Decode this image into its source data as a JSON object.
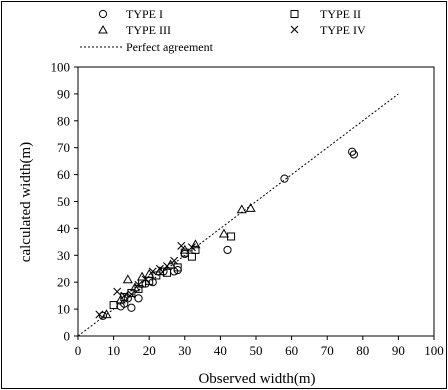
{
  "chart_data": {
    "type": "scatter",
    "title": "",
    "xlabel": "Observed width(m)",
    "ylabel": "calculated width(m)",
    "xlim": [
      0,
      100
    ],
    "ylim": [
      0,
      100
    ],
    "xticks": [
      0,
      10,
      20,
      30,
      40,
      50,
      60,
      70,
      80,
      90,
      100
    ],
    "yticks": [
      0,
      10,
      20,
      30,
      40,
      50,
      60,
      70,
      80,
      90,
      100
    ],
    "grid": false,
    "legend_position": "top",
    "series": [
      {
        "name": "TYPE I",
        "marker": "circle",
        "points": [
          [
            7,
            7.5
          ],
          [
            12,
            11
          ],
          [
            13,
            12
          ],
          [
            14,
            14
          ],
          [
            15,
            10.5
          ],
          [
            17,
            14
          ],
          [
            19,
            19.5
          ],
          [
            21,
            20
          ],
          [
            24,
            24
          ],
          [
            27,
            24
          ],
          [
            28,
            24.5
          ],
          [
            30,
            30.5
          ],
          [
            42,
            32
          ],
          [
            58,
            58.5
          ],
          [
            77,
            68.5
          ],
          [
            77.5,
            67.5
          ]
        ]
      },
      {
        "name": "TYPE II",
        "marker": "square",
        "points": [
          [
            10,
            11.5
          ],
          [
            13,
            14.5
          ],
          [
            15,
            16
          ],
          [
            17,
            17.5
          ],
          [
            18,
            19.5
          ],
          [
            20,
            20.5
          ],
          [
            22,
            22.5
          ],
          [
            25,
            23.5
          ],
          [
            28,
            25.5
          ],
          [
            30,
            31
          ],
          [
            32,
            29.5
          ],
          [
            33,
            32
          ],
          [
            43,
            37
          ]
        ]
      },
      {
        "name": "TYPE III",
        "marker": "triangle",
        "points": [
          [
            8,
            8
          ],
          [
            12,
            13.5
          ],
          [
            14,
            21
          ],
          [
            16,
            18
          ],
          [
            18,
            22
          ],
          [
            20,
            23
          ],
          [
            23,
            24
          ],
          [
            26,
            26.5
          ],
          [
            30,
            32
          ],
          [
            33,
            34
          ],
          [
            41,
            38
          ],
          [
            46,
            47
          ],
          [
            48.5,
            47.5
          ]
        ]
      },
      {
        "name": "TYPE IV",
        "marker": "cross",
        "points": [
          [
            6,
            8
          ],
          [
            11,
            16.5
          ],
          [
            13,
            15
          ],
          [
            15,
            15.5
          ],
          [
            17,
            19
          ],
          [
            19,
            21
          ],
          [
            21,
            24
          ],
          [
            23,
            25
          ],
          [
            25,
            26
          ],
          [
            27,
            28
          ],
          [
            29,
            33.5
          ],
          [
            32,
            33
          ]
        ]
      }
    ],
    "reference_line": {
      "name": "Perfect agreement",
      "style": "dashed",
      "from": [
        0,
        0
      ],
      "to": [
        90,
        90
      ]
    }
  }
}
